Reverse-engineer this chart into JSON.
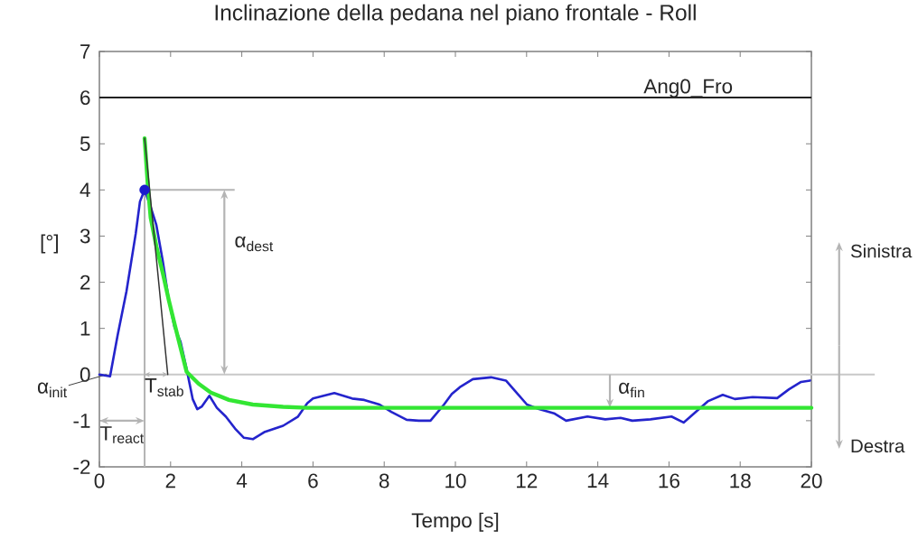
{
  "chart_data": {
    "type": "line",
    "title": "Inclinazione della pedana nel piano frontale - Roll",
    "xlabel": "Tempo [s]",
    "ylabel": "[°]",
    "xlim": [
      0,
      20
    ],
    "ylim": [
      -2,
      7
    ],
    "xticks": [
      0,
      2,
      4,
      6,
      8,
      10,
      12,
      14,
      16,
      18,
      20
    ],
    "yticks": [
      -2,
      -1,
      0,
      1,
      2,
      3,
      4,
      5,
      6,
      7
    ],
    "series": [
      {
        "color": "#2424cc",
        "x": [
          0,
          0.3,
          0.51,
          0.76,
          1.02,
          1.14,
          1.27,
          1.44,
          1.6,
          1.78,
          1.95,
          2.11,
          2.28,
          2.45,
          2.62,
          2.75,
          2.88,
          3.09,
          3.3,
          3.55,
          3.81,
          4.06,
          4.31,
          4.65,
          5.16,
          5.58,
          5.84,
          6.0,
          6.6,
          7.1,
          7.44,
          7.87,
          8.2,
          8.63,
          8.97,
          9.3,
          9.68,
          9.9,
          10.15,
          10.49,
          11.0,
          11.42,
          11.68,
          12.01,
          12.35,
          12.77,
          13.11,
          13.71,
          14.21,
          14.64,
          14.97,
          15.48,
          16.07,
          16.41,
          16.75,
          17.09,
          17.51,
          17.85,
          18.35,
          19.04,
          19.37,
          19.71,
          19.96
        ],
        "values": [
          0,
          -0.04,
          0.84,
          1.8,
          3.05,
          3.75,
          4.0,
          3.63,
          3.24,
          2.46,
          1.61,
          1.03,
          0.71,
          0.12,
          -0.53,
          -0.75,
          -0.69,
          -0.46,
          -0.72,
          -0.91,
          -1.17,
          -1.37,
          -1.4,
          -1.24,
          -1.11,
          -0.91,
          -0.62,
          -0.52,
          -0.4,
          -0.52,
          -0.55,
          -0.65,
          -0.81,
          -0.98,
          -1.0,
          -1.0,
          -0.65,
          -0.42,
          -0.26,
          -0.1,
          -0.06,
          -0.13,
          -0.36,
          -0.65,
          -0.75,
          -0.84,
          -1.0,
          -0.91,
          -0.97,
          -0.94,
          -1.0,
          -0.97,
          -0.91,
          -1.04,
          -0.81,
          -0.58,
          -0.44,
          -0.53,
          -0.49,
          -0.51,
          -0.32,
          -0.16,
          -0.13
        ]
      },
      {
        "color": "#33e633",
        "x": [
          1.27,
          1.36,
          1.44,
          1.6,
          1.78,
          1.95,
          2.11,
          2.28,
          2.45,
          2.79,
          3.13,
          3.64,
          4.31,
          5.16,
          5.84,
          20
        ],
        "values": [
          5.12,
          4.1,
          3.4,
          2.78,
          2.2,
          1.61,
          1.1,
          0.58,
          0.06,
          -0.2,
          -0.39,
          -0.55,
          -0.65,
          -0.7,
          -0.72,
          -0.72
        ]
      },
      {
        "color": "#333333",
        "x": [
          1.27,
          1.92
        ],
        "values": [
          5.12,
          0
        ]
      },
      {
        "type": "scatter",
        "color": "#1a1acd",
        "marker": "circle",
        "x": [
          1.27
        ],
        "values": [
          4.0
        ]
      }
    ],
    "ref_lines": [
      {
        "axis": "y",
        "value": 6,
        "label": "Ang0_Fro",
        "color": "#222222"
      },
      {
        "axis": "y",
        "value": 0,
        "color": "#c8c8c8"
      },
      {
        "axis": "x",
        "value": 1.27,
        "color": "#b4b4b4"
      },
      {
        "axis": "y",
        "value": 4,
        "color": "#b4b4b4"
      }
    ],
    "annotations": [
      {
        "text": "α$_{init}$",
        "x": 0.2,
        "y": 0
      },
      "T$_{react}$",
      {
        "text": "T$_{stab}$",
        "x": 1.6,
        "y": 0
      },
      "α$_{dest}$",
      "α$_{fin}$",
      "Sinistra",
      "Destra"
    ]
  }
}
